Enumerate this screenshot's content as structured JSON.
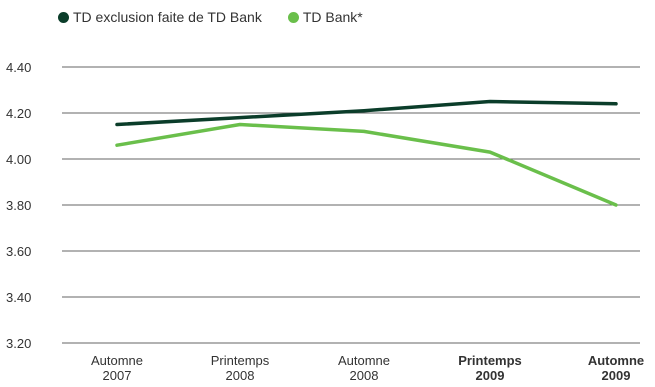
{
  "chart_data": {
    "type": "line",
    "categories": [
      [
        "Automne",
        "2007"
      ],
      [
        "Printemps",
        "2008"
      ],
      [
        "Automne",
        "2008"
      ],
      [
        "Printemps",
        "2009"
      ],
      [
        "Automne",
        "2009"
      ]
    ],
    "bold_categories": [
      3,
      4
    ],
    "ylim": [
      3.2,
      4.4
    ],
    "yticks": [
      "3.20",
      "3.40",
      "3.60",
      "3.80",
      "4.00",
      "4.20",
      "4.40"
    ],
    "grid": true,
    "legend_position": "top-left",
    "series": [
      {
        "name": "TD exclusion faite de TD Bank",
        "color": "#0b3d2a",
        "values": [
          4.15,
          4.18,
          4.21,
          4.25,
          4.24
        ]
      },
      {
        "name": "TD Bank*",
        "color": "#6abf4b",
        "values": [
          4.06,
          4.15,
          4.12,
          4.03,
          3.8
        ]
      }
    ]
  }
}
